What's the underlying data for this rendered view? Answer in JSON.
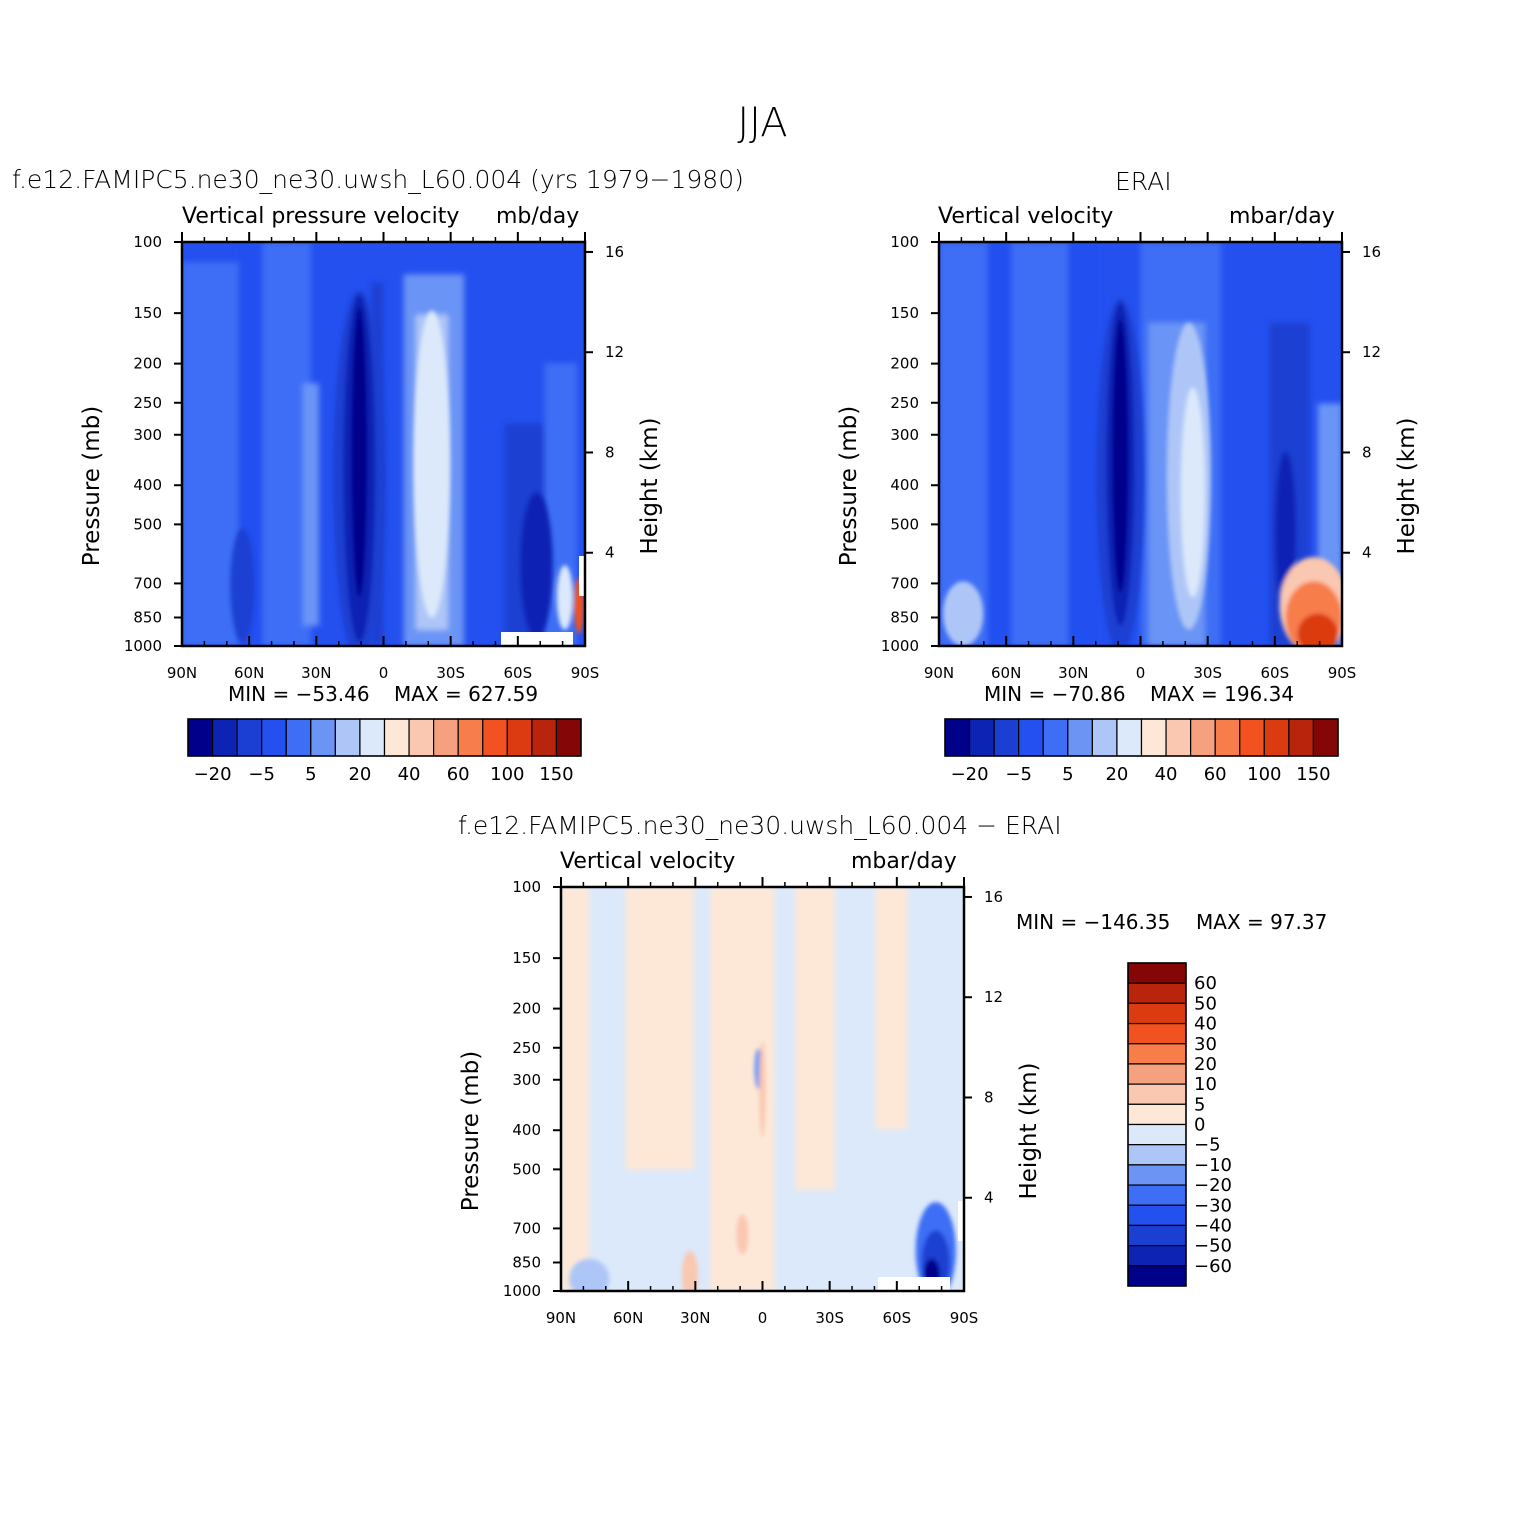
{
  "figure": {
    "title": "JJA"
  },
  "colors": {
    "levels_main": [
      "#00008b",
      "#0d23b4",
      "#1a3fd2",
      "#2450f0",
      "#3d6ef5",
      "#6b94f5",
      "#aec6f7",
      "#dbe9fb",
      "#fde8d8",
      "#fac7b0",
      "#f5a07e",
      "#f77d4b",
      "#f1521f",
      "#dc3a11",
      "#b8240c",
      "#850606"
    ],
    "levels_diff": [
      "#00008b",
      "#0d23b4",
      "#1a3fd2",
      "#2450f0",
      "#3d6ef5",
      "#6b94f5",
      "#aec6f7",
      "#dbe9fb",
      "#fde8d8",
      "#fac7b0",
      "#f5a07e",
      "#f77d4b",
      "#f1521f",
      "#dc3a11",
      "#b8240c",
      "#850606"
    ]
  },
  "panels": [
    {
      "id": "model",
      "title": "f.e12.FAMIPC5.ne30_ne30.uwsh_L60.004 (yrs 1979−1980)",
      "variable": "Vertical pressure velocity",
      "units": "mb/day",
      "min_text": "MIN = −53.46",
      "max_text": "MAX = 627.59",
      "ylabel": "Pressure (mb)",
      "ylabel_right": "Height (km)",
      "x_ticks": [
        "90N",
        "60N",
        "30N",
        "0",
        "30S",
        "60S",
        "90S"
      ],
      "y_ticks": [
        "100",
        "150",
        "200",
        "250",
        "300",
        "400",
        "500",
        "700",
        "850",
        "1000"
      ],
      "y_right_ticks": [
        "16",
        "12",
        "8",
        "4"
      ],
      "colorbar_labels": [
        "−20",
        "−5",
        "5",
        "20",
        "40",
        "60",
        "100",
        "150"
      ]
    },
    {
      "id": "obs",
      "title": "ERAI",
      "variable": "Vertical velocity",
      "units": "mbar/day",
      "min_text": "MIN = −70.86",
      "max_text": "MAX = 196.34",
      "ylabel": "Pressure (mb)",
      "ylabel_right": "Height (km)",
      "x_ticks": [
        "90N",
        "60N",
        "30N",
        "0",
        "30S",
        "60S",
        "90S"
      ],
      "y_ticks": [
        "100",
        "150",
        "200",
        "250",
        "300",
        "400",
        "500",
        "700",
        "850",
        "1000"
      ],
      "y_right_ticks": [
        "16",
        "12",
        "8",
        "4"
      ],
      "colorbar_labels": [
        "−20",
        "−5",
        "5",
        "20",
        "40",
        "60",
        "100",
        "150"
      ]
    },
    {
      "id": "diff",
      "title": "f.e12.FAMIPC5.ne30_ne30.uwsh_L60.004 − ERAI",
      "variable": "Vertical velocity",
      "units": "mbar/day",
      "min_text": "MIN = −146.35",
      "max_text": "MAX =  97.37",
      "ylabel": "Pressure (mb)",
      "ylabel_right": "Height (km)",
      "x_ticks": [
        "90N",
        "60N",
        "30N",
        "0",
        "30S",
        "60S",
        "90S"
      ],
      "y_ticks": [
        "100",
        "150",
        "200",
        "250",
        "300",
        "400",
        "500",
        "700",
        "850",
        "1000"
      ],
      "y_right_ticks": [
        "16",
        "12",
        "8",
        "4"
      ],
      "colorbar_labels": [
        "60",
        "50",
        "40",
        "30",
        "20",
        "10",
        "5",
        "0",
        "−5",
        "−10",
        "−20",
        "−30",
        "−40",
        "−50",
        "−60"
      ]
    }
  ],
  "chart_data": [
    {
      "type": "heatmap",
      "title": "f.e12.FAMIPC5.ne30_ne30.uwsh_L60.004 (yrs 1979−1980)",
      "xlabel": "",
      "ylabel": "Pressure (mb)",
      "x_categories": [
        "90N",
        "60N",
        "30N",
        "0",
        "30S",
        "60S",
        "90S"
      ],
      "y_values": [
        100,
        150,
        200,
        250,
        300,
        400,
        500,
        700,
        850,
        1000
      ],
      "y_scale": "log",
      "contour_levels": [
        -20,
        -5,
        5,
        20,
        40,
        60,
        100,
        150
      ],
      "min": -53.46,
      "max": 627.59,
      "features": [
        {
          "lat": 10,
          "value": -40
        },
        {
          "lat": -25,
          "value": 30
        },
        {
          "lat": -65,
          "value": -20
        },
        {
          "lat": -85,
          "value": 150
        }
      ]
    },
    {
      "type": "heatmap",
      "title": "ERAI",
      "xlabel": "",
      "ylabel": "Pressure (mb)",
      "x_categories": [
        "90N",
        "60N",
        "30N",
        "0",
        "30S",
        "60S",
        "90S"
      ],
      "y_values": [
        100,
        150,
        200,
        250,
        300,
        400,
        500,
        700,
        850,
        1000
      ],
      "y_scale": "log",
      "contour_levels": [
        -20,
        -5,
        5,
        20,
        40,
        60,
        100,
        150
      ],
      "min": -70.86,
      "max": 196.34,
      "features": [
        {
          "lat": 10,
          "value": -40
        },
        {
          "lat": -25,
          "value": 30
        },
        {
          "lat": -65,
          "value": -20
        },
        {
          "lat": -80,
          "value": 150
        }
      ]
    },
    {
      "type": "heatmap",
      "title": "f.e12.FAMIPC5.ne30_ne30.uwsh_L60.004 − ERAI",
      "xlabel": "",
      "ylabel": "Pressure (mb)",
      "x_categories": [
        "90N",
        "60N",
        "30N",
        "0",
        "30S",
        "60S",
        "90S"
      ],
      "y_values": [
        100,
        150,
        200,
        250,
        300,
        400,
        500,
        700,
        850,
        1000
      ],
      "y_scale": "log",
      "contour_levels": [
        -60,
        -50,
        -40,
        -30,
        -20,
        -10,
        -5,
        0,
        5,
        10,
        20,
        30,
        40,
        50,
        60
      ],
      "min": -146.35,
      "max": 97.37,
      "features": [
        {
          "lat": 30,
          "value": 10
        },
        {
          "lat": 0,
          "value": 10
        },
        {
          "lat": -80,
          "value": -60
        }
      ]
    }
  ]
}
